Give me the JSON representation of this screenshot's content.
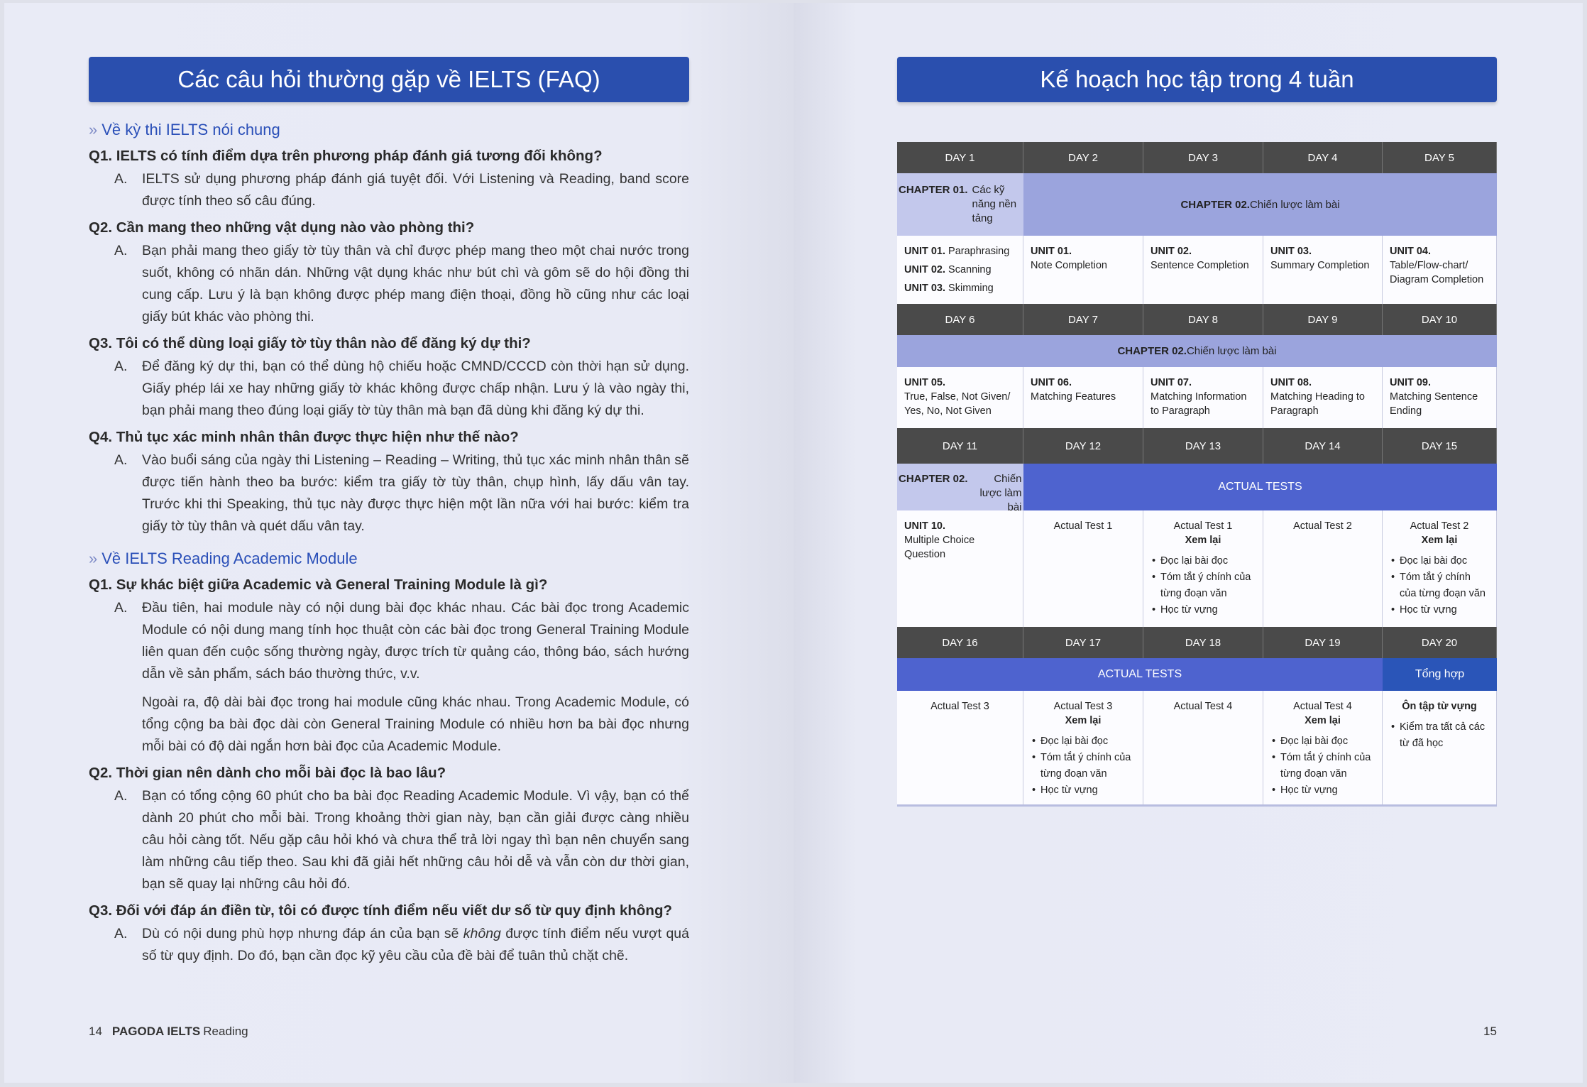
{
  "left": {
    "title": "Các câu hỏi thường gặp về IELTS (FAQ)",
    "sections": [
      {
        "heading": "Về kỳ thi IELTS nói chung",
        "items": [
          {
            "q": "Q1. IELTS có tính điểm dựa trên phương pháp đánh giá tương đối không?",
            "a": [
              "IELTS sử dụng phương pháp đánh giá tuyệt đối. Với Listening và Reading, band score được tính theo số câu đúng."
            ]
          },
          {
            "q": "Q2. Cần mang theo những vật dụng nào vào phòng thi?",
            "a": [
              "Bạn phải mang theo giấy tờ tùy thân và chỉ được phép mang theo một chai nước trong suốt, không có nhãn dán. Những vật dụng khác như bút chì và gôm sẽ do hội đồng thi cung cấp. Lưu ý là bạn không được phép mang điện thoại, đồng hồ cũng như các loại giấy bút khác vào phòng thi."
            ]
          },
          {
            "q": "Q3. Tôi có thể dùng loại giấy tờ tùy thân nào để đăng ký dự thi?",
            "a": [
              "Để đăng ký dự thi, bạn có thể dùng hộ chiếu hoặc CMND/CCCD còn thời hạn sử dụng. Giấy phép lái xe hay những giấy tờ khác không được chấp nhận. Lưu ý là vào ngày thi, bạn phải mang theo đúng loại giấy tờ tùy thân mà bạn đã dùng khi đăng ký dự thi."
            ]
          },
          {
            "q": "Q4. Thủ tục xác minh nhân thân được thực hiện như thế nào?",
            "a": [
              "Vào buổi sáng của ngày thi Listening – Reading – Writing, thủ tục xác minh nhân thân sẽ được tiến hành theo ba bước: kiểm tra giấy tờ tùy thân, chụp hình, lấy dấu vân tay. Trước khi thi Speaking, thủ tục này được thực hiện một lần nữa với hai bước: kiểm tra giấy tờ tùy thân và quét dấu vân tay."
            ]
          }
        ]
      },
      {
        "heading": "Về IELTS Reading Academic Module",
        "items": [
          {
            "q": "Q1. Sự khác biệt giữa Academic và General Training Module là gì?",
            "a": [
              "Đầu tiên, hai module này có nội dung bài đọc khác nhau. Các bài đọc trong Academic Module có nội dung mang tính học thuật còn các bài đọc trong General Training Module liên quan đến cuộc sống thường ngày, được trích từ quảng cáo, thông báo, sách hướng dẫn về sản phẩm, sách báo thường thức, v.v.",
              "Ngoài ra, độ dài bài đọc trong hai module cũng khác nhau. Trong Academic Module, có tổng cộng ba bài đọc dài còn General Training Module có nhiều hơn ba bài đọc nhưng mỗi bài có độ dài ngắn hơn bài đọc của Academic Module."
            ]
          },
          {
            "q": "Q2. Thời gian nên dành cho mỗi bài đọc là bao lâu?",
            "a": [
              "Bạn có tổng cộng 60 phút cho ba bài đọc Reading Academic Module. Vì vậy, bạn có thể dành 20 phút cho mỗi bài. Trong khoảng thời gian này, bạn cần giải được càng nhiều câu hỏi càng tốt. Nếu gặp câu hỏi khó và chưa thể trả lời ngay thì bạn nên chuyển sang làm những câu tiếp theo. Sau khi đã giải hết những câu hỏi dễ và vẫn còn dư thời gian, bạn sẽ quay lại những câu hỏi đó."
            ]
          },
          {
            "q": "Q3. Đối với đáp án điền từ, tôi có được tính điểm nếu viết dư số từ quy định không?",
            "a_pre": "Dù có nội dung phù hợp nhưng đáp án của bạn sẽ ",
            "a_em": "không",
            "a_post": " được tính điểm nếu vượt quá số từ quy định. Do đó, bạn cần đọc kỹ yêu cầu của đề bài để tuân thủ chặt chẽ."
          }
        ]
      }
    ],
    "answer_marker": "A.",
    "section_marker": "»",
    "footer": {
      "page": "14",
      "brand": "PAGODA IELTS",
      "book": "Reading"
    }
  },
  "right": {
    "title": "Kế hoạch học tập trong 4 tuần",
    "days": [
      "DAY 1",
      "DAY 2",
      "DAY 3",
      "DAY 4",
      "DAY 5",
      "DAY 6",
      "DAY 7",
      "DAY 8",
      "DAY 9",
      "DAY 10",
      "DAY 11",
      "DAY 12",
      "DAY 13",
      "DAY 14",
      "DAY 15",
      "DAY 16",
      "DAY 17",
      "DAY 18",
      "DAY 19",
      "DAY 20"
    ],
    "chapter01": {
      "label": "CHAPTER 01.",
      "text": "Các kỹ năng nền tảng"
    },
    "chapter02": {
      "label": "CHAPTER 02.",
      "text": "Chiến lược làm bài"
    },
    "actual_tests": "ACTUAL TESTS",
    "tong_hop": "Tổng hợp",
    "week1": {
      "day1": [
        {
          "u": "UNIT 01.",
          "t": "Paraphrasing"
        },
        {
          "u": "UNIT 02.",
          "t": "Scanning"
        },
        {
          "u": "UNIT 03.",
          "t": "Skimming"
        }
      ],
      "cells": [
        {
          "u": "UNIT 01.",
          "t": "Note Completion"
        },
        {
          "u": "UNIT 02.",
          "t": "Sentence Completion"
        },
        {
          "u": "UNIT 03.",
          "t": "Summary Completion"
        },
        {
          "u": "UNIT 04.",
          "t": "Table/Flow-chart/ Diagram Completion"
        }
      ]
    },
    "week2": [
      {
        "u": "UNIT 05.",
        "t": "True, False, Not Given/ Yes, No, Not Given"
      },
      {
        "u": "UNIT 06.",
        "t": "Matching Features"
      },
      {
        "u": "UNIT 07.",
        "t": "Matching Information to Paragraph"
      },
      {
        "u": "UNIT 08.",
        "t": "Matching Heading to Paragraph"
      },
      {
        "u": "UNIT 09.",
        "t": "Matching Sentence Ending"
      }
    ],
    "week3": {
      "unit10": {
        "u": "UNIT 10.",
        "t": "Multiple Choice Question"
      },
      "t1": "Actual Test 1",
      "t2": "Actual Test 2"
    },
    "week4": {
      "t3": "Actual Test 3",
      "t4": "Actual Test 4",
      "review_title": "Ôn tập từ vựng",
      "review_item": "Kiểm tra tất cả các từ đã học"
    },
    "review": {
      "label": "Xem lại",
      "items": [
        "Đọc lại bài đọc",
        "Tóm tắt ý chính của từng đoạn văn",
        "Học từ vựng"
      ]
    },
    "footer_page": "15"
  },
  "colors": {
    "banner": "#2a4fae",
    "day_header": "#4a4a4a",
    "chapter02": "#9ba4dd",
    "chapter01": "#c3c8ec",
    "actual_tests": "#4e63cf",
    "tong_hop": "#2a55b8",
    "section_heading": "#2a4fb8"
  }
}
